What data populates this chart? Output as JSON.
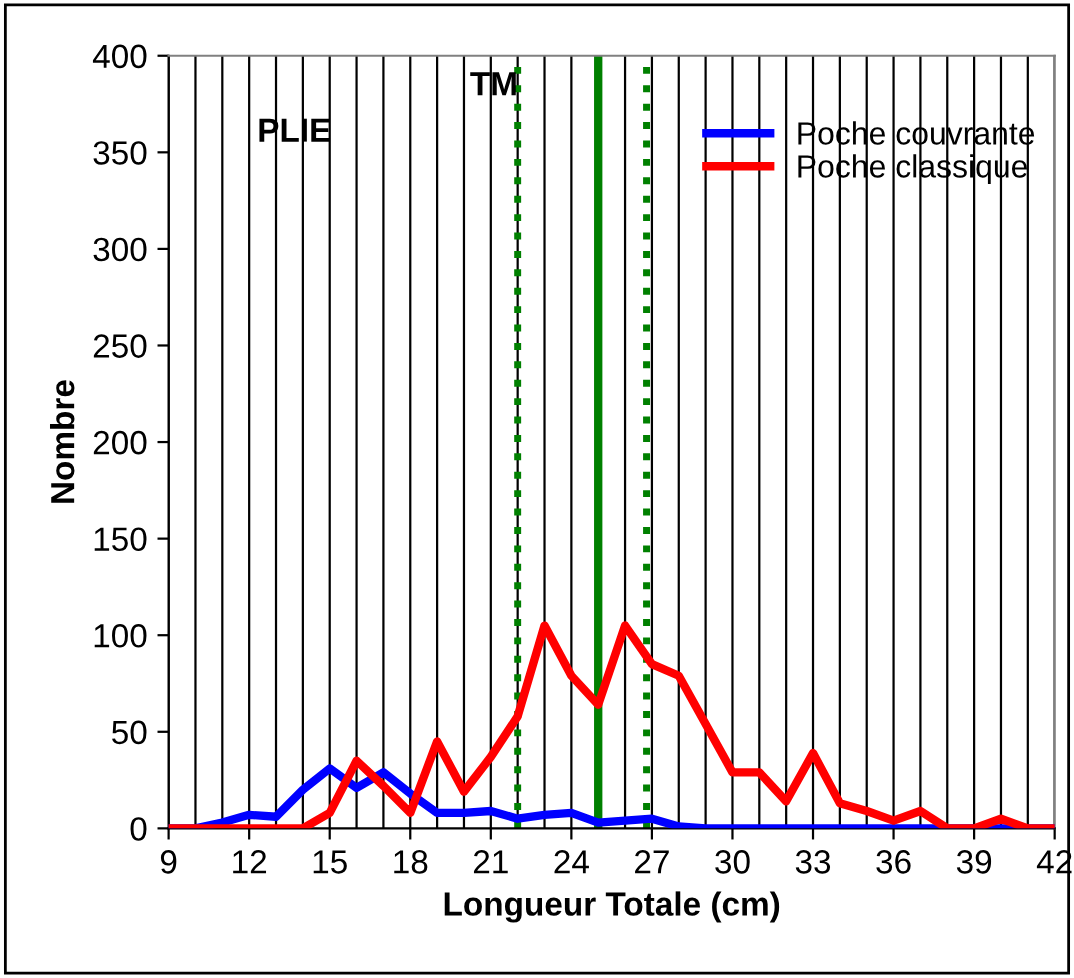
{
  "chart_data": {
    "type": "line",
    "xlabel": "Longueur Totale (cm)",
    "ylabel": "Nombre",
    "x": [
      9,
      10,
      11,
      12,
      13,
      14,
      15,
      16,
      17,
      18,
      19,
      20,
      21,
      22,
      23,
      24,
      25,
      26,
      27,
      28,
      29,
      30,
      31,
      32,
      33,
      34,
      35,
      36,
      37,
      38,
      39,
      40,
      41,
      42
    ],
    "series": [
      {
        "name": "Poche couvrante",
        "color": "#0000ff",
        "values": [
          0,
          0,
          3,
          7,
          6,
          20,
          31,
          21,
          29,
          18,
          8,
          8,
          9,
          5,
          7,
          8,
          3,
          4,
          5,
          1,
          0,
          0,
          0,
          0,
          0,
          0,
          0,
          0,
          0,
          0,
          0,
          0,
          0,
          0
        ]
      },
      {
        "name": "Poche classique",
        "color": "#ff0000",
        "values": [
          0,
          0,
          0,
          0,
          0,
          0,
          8,
          35,
          22,
          8,
          45,
          19,
          37,
          58,
          105,
          79,
          64,
          105,
          85,
          79,
          54,
          29,
          29,
          14,
          39,
          13,
          9,
          4,
          9,
          0,
          0,
          5,
          0,
          0
        ]
      }
    ],
    "xlim": [
      9,
      42
    ],
    "xticks": [
      9,
      12,
      15,
      18,
      21,
      24,
      27,
      30,
      33,
      36,
      39,
      42
    ],
    "ylim": [
      0,
      400
    ],
    "yticks": [
      0,
      50,
      100,
      150,
      200,
      250,
      300,
      350,
      400
    ],
    "grid": "x",
    "legend": "top right",
    "marker": "none",
    "line_style": "solid",
    "ref_lines": [
      {
        "axis": "x",
        "value": 22,
        "color": "#008000",
        "line_style": "dotted"
      },
      {
        "axis": "x",
        "value": 25,
        "color": "#008000",
        "line_style": "solid"
      },
      {
        "axis": "x",
        "value": 26.8,
        "color": "#008000",
        "line_style": "dotted"
      }
    ],
    "annotations": [
      "PLIE",
      "TM"
    ]
  }
}
